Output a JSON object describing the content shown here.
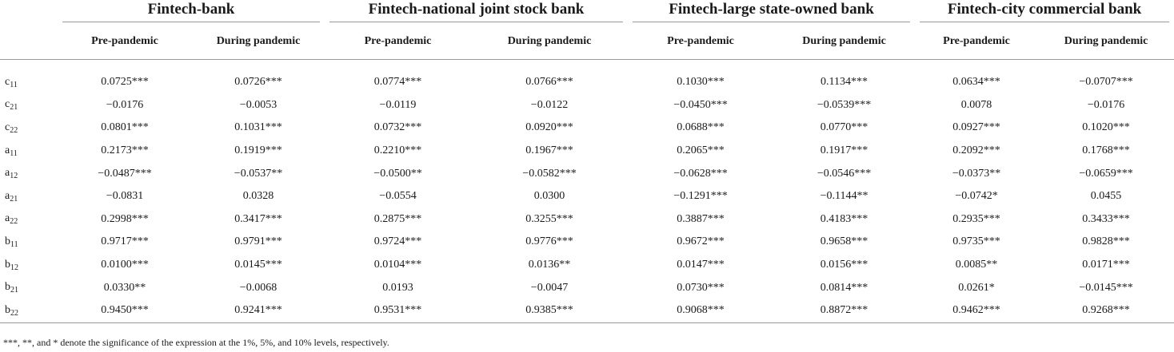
{
  "groups": [
    "Fintech-bank",
    "Fintech-national joint stock bank",
    "Fintech-large state-owned bank",
    "Fintech-city commercial bank"
  ],
  "subheaders": [
    "Pre-pandemic",
    "During pandemic"
  ],
  "rows": [
    {
      "base": "c",
      "sub": "11",
      "values": [
        "0.0725***",
        "0.0726***",
        "0.0774***",
        "0.0766***",
        "0.1030***",
        "0.1134***",
        "0.0634***",
        "−0.0707***"
      ]
    },
    {
      "base": "c",
      "sub": "21",
      "values": [
        "−0.0176",
        "−0.0053",
        "−0.0119",
        "−0.0122",
        "−0.0450***",
        "−0.0539***",
        "0.0078",
        "−0.0176"
      ]
    },
    {
      "base": "c",
      "sub": "22",
      "values": [
        "0.0801***",
        "0.1031***",
        "0.0732***",
        "0.0920***",
        "0.0688***",
        "0.0770***",
        "0.0927***",
        "0.1020***"
      ]
    },
    {
      "base": "a",
      "sub": "11",
      "values": [
        "0.2173***",
        "0.1919***",
        "0.2210***",
        "0.1967***",
        "0.2065***",
        "0.1917***",
        "0.2092***",
        "0.1768***"
      ]
    },
    {
      "base": "a",
      "sub": "12",
      "values": [
        "−0.0487***",
        "−0.0537**",
        "−0.0500**",
        "−0.0582***",
        "−0.0628***",
        "−0.0546***",
        "−0.0373**",
        "−0.0659***"
      ]
    },
    {
      "base": "a",
      "sub": "21",
      "values": [
        "−0.0831",
        "0.0328",
        "−0.0554",
        "0.0300",
        "−0.1291***",
        "−0.1144**",
        "−0.0742*",
        "0.0455"
      ]
    },
    {
      "base": "a",
      "sub": "22",
      "values": [
        "0.2998***",
        "0.3417***",
        "0.2875***",
        "0.3255***",
        "0.3887***",
        "0.4183***",
        "0.2935***",
        "0.3433***"
      ]
    },
    {
      "base": "b",
      "sub": "11",
      "values": [
        "0.9717***",
        "0.9791***",
        "0.9724***",
        "0.9776***",
        "0.9672***",
        "0.9658***",
        "0.9735***",
        "0.9828***"
      ]
    },
    {
      "base": "b",
      "sub": "12",
      "values": [
        "0.0100***",
        "0.0145***",
        "0.0104***",
        "0.0136**",
        "0.0147***",
        "0.0156***",
        "0.0085**",
        "0.0171***"
      ]
    },
    {
      "base": "b",
      "sub": "21",
      "values": [
        "0.0330**",
        "−0.0068",
        "0.0193",
        "−0.0047",
        "0.0730***",
        "0.0814***",
        "0.0261*",
        "−0.0145***"
      ]
    },
    {
      "base": "b",
      "sub": "22",
      "values": [
        "0.9450***",
        "0.9241***",
        "0.9531***",
        "0.9385***",
        "0.9068***",
        "0.8872***",
        "0.9462***",
        "0.9268***"
      ]
    }
  ],
  "footnote": "***, **, and * denote the significance of the expression at the 1%, 5%, and 10% levels, respectively."
}
